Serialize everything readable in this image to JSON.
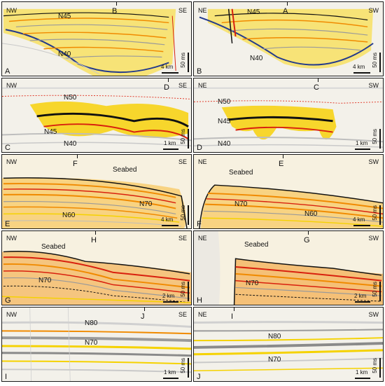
{
  "panels": [
    {
      "id": "A",
      "dir_left": "NW",
      "dir_right": "SE",
      "marker": "B",
      "horizons": [
        "N45",
        "N40"
      ],
      "scale": "4 km",
      "vscale": "50 ms"
    },
    {
      "id": "B",
      "dir_left": "NE",
      "dir_right": "SW",
      "marker": "A",
      "horizons": [
        "N45",
        "N40"
      ],
      "scale": "4 km",
      "vscale": "50 ms"
    },
    {
      "id": "C",
      "dir_left": "NW",
      "dir_right": "SE",
      "marker": "D",
      "horizons": [
        "N50",
        "N45",
        "N40"
      ],
      "scale": "1 km",
      "vscale": "50 ms"
    },
    {
      "id": "D",
      "dir_left": "NE",
      "dir_right": "SW",
      "marker": "C",
      "horizons": [
        "N50",
        "N45",
        "N40"
      ],
      "scale": "1 km",
      "vscale": "50 ms"
    },
    {
      "id": "E",
      "dir_left": "NW",
      "dir_right": "SE",
      "marker": "F",
      "horizons": [
        "Seabed",
        "N70",
        "N60"
      ],
      "scale": "4 km",
      "vscale": "50 ms"
    },
    {
      "id": "F",
      "dir_left": "NE",
      "dir_right": "SW",
      "marker": "E",
      "horizons": [
        "Seabed",
        "N70",
        "N60"
      ],
      "scale": "4 km",
      "vscale": "50 ms"
    },
    {
      "id": "G",
      "dir_left": "NW",
      "dir_right": "SE",
      "marker": "H",
      "horizons": [
        "Seabed",
        "N70"
      ],
      "scale": "2 km",
      "vscale": "50 ms"
    },
    {
      "id": "H",
      "dir_left": "NE",
      "dir_right": "SW",
      "marker": "G",
      "horizons": [
        "Seabed",
        "N70"
      ],
      "scale": "2 km",
      "vscale": "50 ms"
    },
    {
      "id": "I",
      "dir_left": "NW",
      "dir_right": "SE",
      "marker": "J",
      "horizons": [
        "N80",
        "N70"
      ],
      "scale": "1 km",
      "vscale": "50 ms"
    },
    {
      "id": "J",
      "dir_left": "NE",
      "dir_right": "SW",
      "marker": "I",
      "horizons": [
        "N80",
        "N70"
      ],
      "scale": "1 km",
      "vscale": "50 ms"
    }
  ],
  "colors": {
    "reflector_yellow": "#f5d200",
    "reflector_orange": "#f08a00",
    "reflector_red": "#d8200e",
    "reflector_black": "#111111",
    "reflector_grey": "#9a9a9a",
    "horizon_blue": "#233a8c",
    "horizon_red_dotted": "#e03a2a"
  }
}
